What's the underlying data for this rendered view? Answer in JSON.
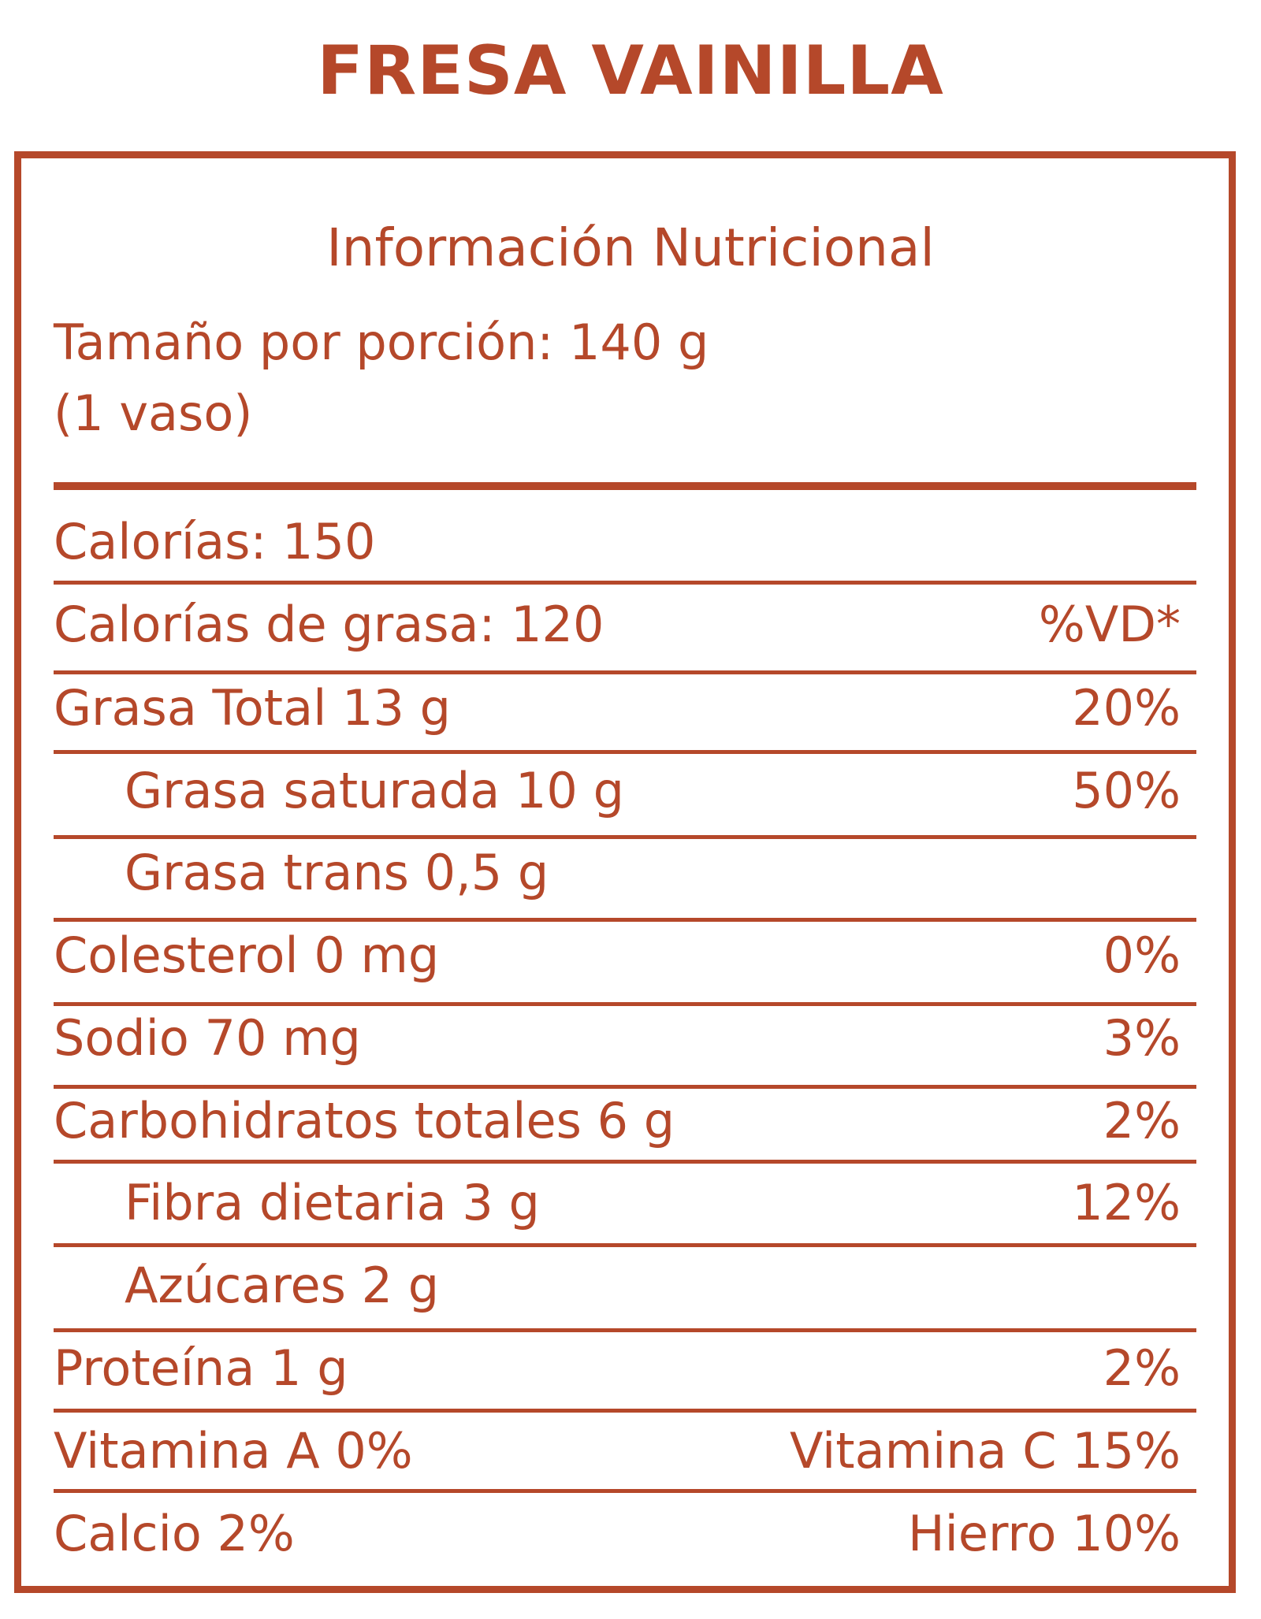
{
  "product": {
    "title": "FRESA VAINILLA"
  },
  "panel": {
    "heading": "Información Nutricional",
    "serving_line1": "Tamaño por porción: 140 g",
    "serving_line2": "(1 vaso)",
    "calories": "Calorías: 150",
    "fat_calories": "Calorías de grasa: 120",
    "dv_header": "%VD*",
    "rows": [
      {
        "label": "Grasa Total 13 g",
        "value": "20%"
      },
      {
        "label": "Grasa saturada 10 g",
        "value": "50%"
      },
      {
        "label": "Grasa trans 0,5 g",
        "value": ""
      },
      {
        "label": "Colesterol 0 mg",
        "value": "0%"
      },
      {
        "label": "Sodio 70 mg",
        "value": "3%"
      },
      {
        "label": "Carbohidratos totales 6 g",
        "value": "2%"
      },
      {
        "label": "Fibra dietaria 3 g",
        "value": "12%"
      },
      {
        "label": "Azúcares 2 g",
        "value": ""
      },
      {
        "label": "Proteína 1 g",
        "value": "2%"
      }
    ],
    "vitamin_a": "Vitamina A 0%",
    "vitamin_c": "Vitamina C 15%",
    "calcium": "Calcio 2%",
    "iron": "Hierro 10%"
  },
  "colors": {
    "brand": "#b5482a",
    "background": "#ffffff"
  }
}
